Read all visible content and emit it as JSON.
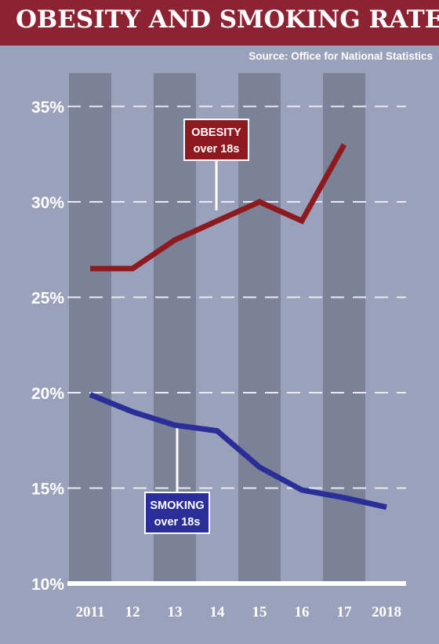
{
  "header": {
    "title": "OBESITY AND SMOKING RATES",
    "source": "Source: Office for National Statistics"
  },
  "colors": {
    "title_bar": "#8c2232",
    "background": "#9aa1ba",
    "column_band": "#7b8196",
    "obesity_line": "#8e1a20",
    "smoking_line": "#2b2d98"
  },
  "chart_data": {
    "type": "line",
    "categories": [
      "2011",
      "12",
      "13",
      "14",
      "15",
      "16",
      "17",
      "2018"
    ],
    "x": [
      2011,
      2012,
      2013,
      2014,
      2015,
      2016,
      2017,
      2018
    ],
    "ylim": [
      10,
      36
    ],
    "yticks": [
      10,
      15,
      20,
      25,
      30,
      35
    ],
    "ytick_labels": [
      "10%",
      "15%",
      "20%",
      "25%",
      "30%",
      "35%"
    ],
    "grid": true,
    "series": [
      {
        "key": "obesity",
        "label_line1": "OBESITY",
        "label_line2": "over 18s",
        "x": [
          2011,
          2012,
          2013,
          2014,
          2015,
          2016,
          2017
        ],
        "values": [
          26.5,
          26.5,
          28,
          29,
          30,
          29,
          33
        ]
      },
      {
        "key": "smoking",
        "label_line1": "SMOKING",
        "label_line2": "over 18s",
        "x": [
          2011,
          2012,
          2013,
          2014,
          2015,
          2016,
          2017,
          2018
        ],
        "values": [
          19.9,
          19.0,
          18.3,
          18.0,
          16.1,
          14.9,
          14.5,
          14.0
        ]
      }
    ]
  }
}
